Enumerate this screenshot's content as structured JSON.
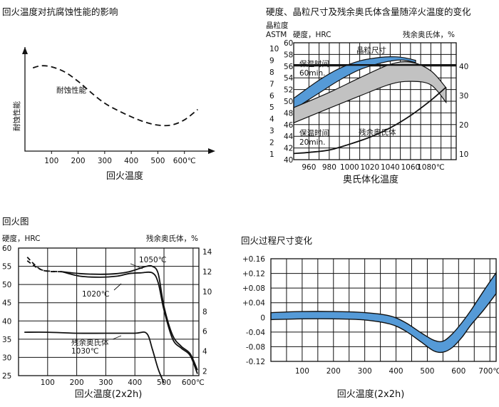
{
  "chart_data": [
    {
      "type": "line",
      "title": "回火温度对抗腐蚀性能的影响",
      "xlabel": "回火温度",
      "ylabel": "耐蚀性能",
      "xlim": [
        0,
        700
      ],
      "x_ticks": [
        "100",
        "200",
        "300",
        "400",
        "500",
        "600℃"
      ],
      "curve_label": "耐蚀性能",
      "series": [
        {
          "x": [
            30,
            60,
            100,
            150,
            200,
            250,
            300,
            350,
            400,
            450,
            500,
            550,
            600,
            650
          ],
          "y": [
            0.8,
            0.82,
            0.81,
            0.76,
            0.67,
            0.56,
            0.46,
            0.39,
            0.33,
            0.28,
            0.25,
            0.25,
            0.3,
            0.4
          ]
        }
      ],
      "y_scale": "qualitative"
    },
    {
      "type": "area",
      "title": "硬度、晶粒尺寸及残余奥氏体含量随淬火温度的变化",
      "xlabel": "奥氏体化温度",
      "y_left_label_1": "晶粒度",
      "y_left_label_2": "ASTM",
      "y_left_label_3": "硬度，HRC",
      "y_right_label": "残余奥氏体，%",
      "xlim": [
        945,
        1105
      ],
      "x_ticks": [
        "960",
        "980",
        "1000",
        "1020",
        "1040",
        "1060",
        "1080℃"
      ],
      "astm_ticks": [
        "1",
        "2",
        "3",
        "4",
        "5",
        "6",
        "7",
        "8",
        "9",
        "10"
      ],
      "hrc_ticks": [
        "40",
        "42",
        "44",
        "46",
        "48",
        "50",
        "52",
        "54",
        "56",
        "58",
        "60"
      ],
      "ra_ticks": [
        "10",
        "20",
        "30",
        "40"
      ],
      "hrc_range": [
        40,
        60
      ],
      "ra_range": [
        8,
        48
      ],
      "band_labels": {
        "grain": "晶粒尺寸",
        "long": "保温时间\n60min.",
        "short": "保温时间\n20min.",
        "ra": "残余奥氏体"
      },
      "grain_size_astm": 8.6,
      "hrc_60min_upper": {
        "x": [
          945,
          970,
          990,
          1010,
          1030,
          1045,
          1055,
          1065
        ],
        "y": [
          50.5,
          53.6,
          55.6,
          56.9,
          57.5,
          57.6,
          57.4,
          57.0
        ]
      },
      "hrc_60min_lower": {
        "x": [
          945,
          970,
          990,
          1010,
          1030,
          1045,
          1055,
          1065
        ],
        "y": [
          48.6,
          51.4,
          53.6,
          55.4,
          56.5,
          57.0,
          57.0,
          56.6
        ]
      },
      "hrc_20min_upper": {
        "x": [
          945,
          980,
          1010,
          1040,
          1060,
          1080,
          1095
        ],
        "y": [
          48.9,
          51.5,
          54.0,
          56.3,
          56.7,
          55.2,
          52.3
        ]
      },
      "hrc_20min_lower": {
        "x": [
          945,
          980,
          1010,
          1040,
          1060,
          1080,
          1095
        ],
        "y": [
          46.3,
          48.8,
          50.9,
          52.9,
          53.4,
          52.8,
          49.8
        ]
      },
      "retained_austenite": {
        "x": [
          945,
          960,
          980,
          1000,
          1020,
          1040,
          1060,
          1080,
          1095
        ],
        "y": [
          10.1,
          10.5,
          11.3,
          13.3,
          15.7,
          18.9,
          23.1,
          28.3,
          32.8
        ]
      }
    },
    {
      "type": "line",
      "title": "回火图",
      "xlabel": "回火温度(2x2h)",
      "y_left_label": "硬度，HRC",
      "y_right_label": "残余奥氏体，%",
      "xlim": [
        0,
        620
      ],
      "hrc_range": [
        25,
        60
      ],
      "ra_range": [
        1,
        14
      ],
      "x_ticks": [
        "100",
        "200",
        "300",
        "400",
        "500",
        "600℃"
      ],
      "hrc_ticks": [
        "60",
        "55",
        "50",
        "45",
        "40",
        "35",
        "30",
        "25"
      ],
      "ra_ticks": [
        "14",
        "12",
        "10",
        "8",
        "6",
        "4",
        "2"
      ],
      "series": [
        {
          "name": "1050℃",
          "x": [
            30,
            80,
            150,
            210,
            280,
            340,
            380,
            420,
            440,
            460,
            480,
            500,
            530,
            560,
            590,
            615
          ],
          "y": [
            57.5,
            54,
            53.5,
            53,
            52.8,
            53,
            53.5,
            54.5,
            55,
            55,
            53,
            44,
            36,
            33,
            31,
            26.5
          ]
        },
        {
          "name": "1020℃",
          "x": [
            30,
            80,
            150,
            210,
            280,
            340,
            380,
            420,
            460,
            480,
            500,
            530,
            560,
            590,
            615
          ],
          "y": [
            56.5,
            54,
            53.5,
            52.3,
            52,
            52.3,
            53,
            53.2,
            53.2,
            50.5,
            43,
            35,
            32.5,
            30.5,
            25.5
          ]
        },
        {
          "name": "残余奥氏体 1030℃",
          "axis": "right",
          "x": [
            20,
            100,
            200,
            300,
            400,
            440,
            460,
            480,
            500
          ],
          "y": [
            5.9,
            5.9,
            5.8,
            5.8,
            5.8,
            5.8,
            4.2,
            2.2,
            0.8
          ]
        }
      ],
      "series_labels": [
        "1050℃",
        "1020℃",
        "残余奥氏体",
        "1030℃"
      ]
    },
    {
      "type": "area",
      "title": "回火过程尺寸变化",
      "xlabel": "回火温度(2x2h)",
      "xlim": [
        0,
        720
      ],
      "ylim": [
        -0.12,
        0.16
      ],
      "x_ticks": [
        "100",
        "200",
        "300",
        "400",
        "500",
        "600",
        "700℃"
      ],
      "y_ticks": [
        "+0.16",
        "+0.12",
        "+0.08",
        "+0.04",
        "0",
        "-0.04",
        "-0.08",
        "-0.12"
      ],
      "band_upper": {
        "x": [
          0,
          100,
          200,
          300,
          380,
          430,
          480,
          520,
          550,
          580,
          610,
          640,
          680,
          720
        ],
        "y": [
          0.013,
          0.016,
          0.016,
          0.013,
          0.004,
          -0.014,
          -0.042,
          -0.062,
          -0.065,
          -0.045,
          -0.015,
          0.02,
          0.072,
          0.122
        ]
      },
      "band_lower": {
        "x": [
          0,
          100,
          200,
          300,
          380,
          430,
          480,
          520,
          550,
          580,
          610,
          640,
          680,
          720
        ],
        "y": [
          -0.006,
          -0.004,
          -0.004,
          -0.007,
          -0.018,
          -0.037,
          -0.067,
          -0.091,
          -0.095,
          -0.082,
          -0.055,
          -0.02,
          0.02,
          0.065
        ]
      }
    }
  ],
  "colors": {
    "blue_band": "#559ad7",
    "gray_band": "#c2c2c2",
    "ink": "#111111"
  }
}
